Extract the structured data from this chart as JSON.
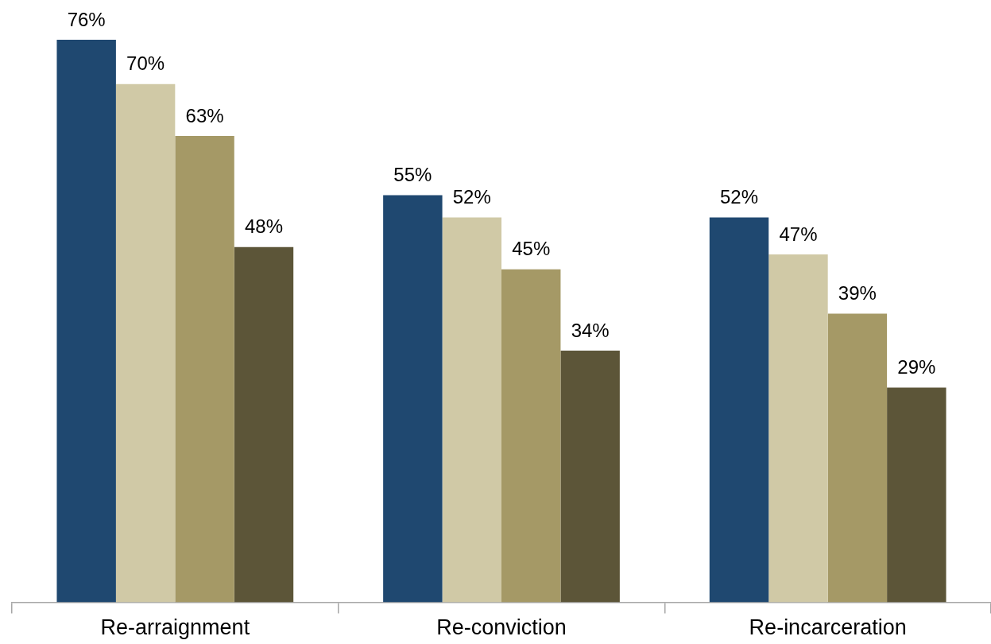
{
  "chart_data": {
    "type": "bar",
    "categories": [
      "Re-arraignment",
      "Re-conviction",
      "Re-incarceration"
    ],
    "series": [
      {
        "color": "#1f4870",
        "values": [
          76,
          55,
          52
        ],
        "value_labels": [
          "76%",
          "55%",
          "52%"
        ]
      },
      {
        "color": "#d0c9a6",
        "values": [
          70,
          52,
          47
        ],
        "value_labels": [
          "70%",
          "52%",
          "47%"
        ]
      },
      {
        "color": "#a59966",
        "values": [
          63,
          45,
          39
        ],
        "value_labels": [
          "63%",
          "45%",
          "39%"
        ]
      },
      {
        "color": "#5c5538",
        "values": [
          48,
          34,
          29
        ],
        "value_labels": [
          "48%",
          "34%",
          "29%"
        ]
      }
    ],
    "ylim": [
      0,
      76
    ],
    "grid": false,
    "legend": false
  }
}
